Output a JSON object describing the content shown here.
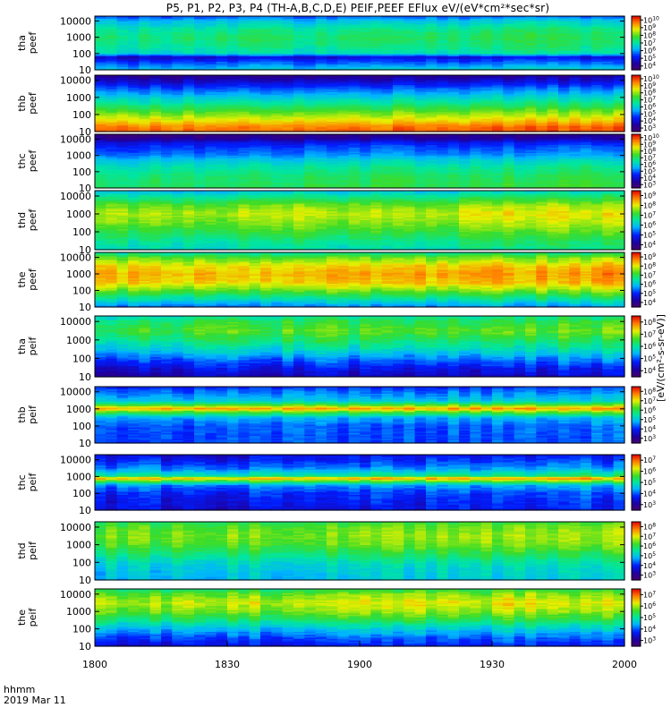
{
  "title": "P5, P1, P2, P3, P4 (TH-A,B,C,D,E) PEIF,PEEF EFlux eV/(eV*cm²*sec*sr)",
  "time_axis": {
    "label": "hhmm",
    "date": "2019 Mar 11",
    "range": [
      1800,
      2000
    ],
    "ticks": [
      "1800",
      "1830",
      "1900",
      "1930",
      "2000"
    ]
  },
  "colorbar_title": "[eV/(cm²-s-sr-eV)]",
  "panels": [
    {
      "ylabel": [
        "tha",
        "peef"
      ],
      "yticks": [
        "10000",
        "1000",
        "100",
        "10"
      ],
      "cbar_exps": [
        "10",
        "9",
        "8",
        "7",
        "6",
        "5",
        "4"
      ]
    },
    {
      "ylabel": [
        "thb",
        "peef"
      ],
      "yticks": [
        "10000",
        "1000",
        "100",
        "10"
      ],
      "cbar_exps": [
        "10",
        "9",
        "8",
        "7",
        "6",
        "5",
        "4",
        "3"
      ]
    },
    {
      "ylabel": [
        "thc",
        "peef"
      ],
      "yticks": [
        "10000",
        "1000",
        "100",
        "10"
      ],
      "cbar_exps": [
        "10",
        "9",
        "8",
        "7",
        "6",
        "5",
        "4",
        "3"
      ]
    },
    {
      "ylabel": [
        "thd",
        "peef"
      ],
      "yticks": [
        "10000",
        "1000",
        "100",
        "10"
      ],
      "cbar_exps": [
        "9",
        "8",
        "7",
        "6",
        "5",
        "4"
      ]
    },
    {
      "ylabel": [
        "the",
        "peef"
      ],
      "yticks": [
        "10000",
        "1000",
        "100",
        "10"
      ],
      "cbar_exps": [
        "9",
        "8",
        "7",
        "6",
        "5",
        "4"
      ]
    },
    {
      "ylabel": [
        "tha",
        "peif"
      ],
      "yticks": [
        "10000",
        "1000",
        "100",
        "10"
      ],
      "cbar_exps": [
        "8",
        "7",
        "6",
        "5",
        "4"
      ]
    },
    {
      "ylabel": [
        "thb",
        "peif"
      ],
      "yticks": [
        "10000",
        "1000",
        "100",
        "10"
      ],
      "cbar_exps": [
        "8",
        "7",
        "6",
        "5",
        "4",
        "3"
      ]
    },
    {
      "ylabel": [
        "thc",
        "peif"
      ],
      "yticks": [
        "10000",
        "1000",
        "100",
        "10"
      ],
      "cbar_exps": [
        "7",
        "6",
        "5",
        "4",
        "3"
      ]
    },
    {
      "ylabel": [
        "thd",
        "peif"
      ],
      "yticks": [
        "10000",
        "1000",
        "100",
        "10"
      ],
      "cbar_exps": [
        "8",
        "7",
        "6",
        "5",
        "4",
        "3"
      ]
    },
    {
      "ylabel": [
        "the",
        "peif"
      ],
      "yticks": [
        "10000",
        "1000",
        "100",
        "10"
      ],
      "cbar_exps": [
        "7",
        "6",
        "5",
        "4",
        "3"
      ]
    }
  ],
  "chart_data": {
    "type": "heatmap",
    "title": "P5, P1, P2, P3, P4 (TH-A,B,C,D,E) PEIF,PEEF EFlux eV/(eV*cm²*sec*sr)",
    "x_range": [
      1800,
      2000
    ],
    "x_unit": "hhmm",
    "y_scale": "log",
    "y_range": [
      10,
      20000
    ],
    "colormap": "rainbow (purple-blue-cyan-green-yellow-red)",
    "panels": [
      {
        "name": "tha peef",
        "profile": [
          [
            10,
            6.5
          ],
          [
            30,
            5.5
          ],
          [
            60,
            4.8
          ],
          [
            100,
            6.8
          ],
          [
            300,
            7.2
          ],
          [
            1000,
            7.4
          ],
          [
            3000,
            7.1
          ],
          [
            10000,
            6.4
          ],
          [
            20000,
            5.5
          ]
        ]
      },
      {
        "name": "thb peef",
        "profile": [
          [
            10,
            9.8
          ],
          [
            20,
            9.5
          ],
          [
            40,
            8.8
          ],
          [
            100,
            8.0
          ],
          [
            300,
            7.0
          ],
          [
            1000,
            6.0
          ],
          [
            3000,
            5.0
          ],
          [
            10000,
            3.8
          ],
          [
            20000,
            3.2
          ]
        ]
      },
      {
        "name": "thc peef",
        "profile": [
          [
            10,
            7.2
          ],
          [
            50,
            7.0
          ],
          [
            200,
            6.5
          ],
          [
            500,
            6.0
          ],
          [
            1000,
            5.3
          ],
          [
            3000,
            4.8
          ],
          [
            6000,
            4.3
          ],
          [
            10000,
            3.5
          ],
          [
            20000,
            3.0
          ]
        ]
      },
      {
        "name": "thd peef",
        "profile": [
          [
            10,
            6.4
          ],
          [
            30,
            6.7
          ],
          [
            100,
            7.2
          ],
          [
            300,
            7.6
          ],
          [
            1000,
            7.9
          ],
          [
            3000,
            7.5
          ],
          [
            10000,
            6.6
          ],
          [
            20000,
            6.0
          ]
        ]
      },
      {
        "name": "the peef",
        "profile": [
          [
            10,
            5.5
          ],
          [
            30,
            6.5
          ],
          [
            100,
            7.5
          ],
          [
            300,
            8.3
          ],
          [
            1000,
            8.5
          ],
          [
            3000,
            8.2
          ],
          [
            10000,
            7.4
          ],
          [
            20000,
            6.5
          ]
        ]
      },
      {
        "name": "tha peif",
        "profile": [
          [
            10,
            4.3
          ],
          [
            30,
            4.6
          ],
          [
            100,
            5.2
          ],
          [
            300,
            5.8
          ],
          [
            1000,
            6.3
          ],
          [
            3000,
            6.7
          ],
          [
            10000,
            6.4
          ],
          [
            20000,
            6.0
          ]
        ]
      },
      {
        "name": "thb peif",
        "profile": [
          [
            10,
            4.2
          ],
          [
            100,
            4.3
          ],
          [
            300,
            4.8
          ],
          [
            700,
            6.5
          ],
          [
            1000,
            7.6
          ],
          [
            1500,
            6.5
          ],
          [
            3000,
            5.0
          ],
          [
            10000,
            4.4
          ],
          [
            20000,
            4.0
          ]
        ]
      },
      {
        "name": "thc peif",
        "profile": [
          [
            10,
            3.5
          ],
          [
            100,
            3.8
          ],
          [
            300,
            4.3
          ],
          [
            600,
            6.0
          ],
          [
            800,
            6.8
          ],
          [
            1000,
            5.2
          ],
          [
            3000,
            4.2
          ],
          [
            10000,
            3.7
          ],
          [
            20000,
            3.5
          ]
        ]
      },
      {
        "name": "thd peif",
        "profile": [
          [
            10,
            5.0
          ],
          [
            50,
            5.2
          ],
          [
            100,
            5.4
          ],
          [
            300,
            5.9
          ],
          [
            1000,
            6.4
          ],
          [
            3000,
            6.6
          ],
          [
            10000,
            6.4
          ],
          [
            20000,
            6.0
          ]
        ]
      },
      {
        "name": "the peif",
        "profile": [
          [
            10,
            3.6
          ],
          [
            30,
            4.0
          ],
          [
            100,
            4.6
          ],
          [
            300,
            5.3
          ],
          [
            1000,
            5.9
          ],
          [
            3000,
            6.2
          ],
          [
            10000,
            5.8
          ],
          [
            20000,
            5.3
          ]
        ]
      }
    ]
  }
}
